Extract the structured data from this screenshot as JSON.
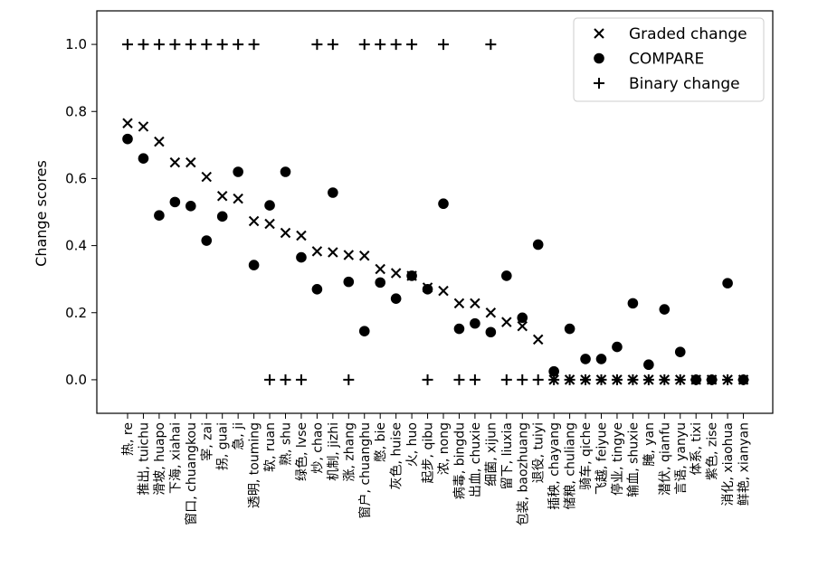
{
  "chart_data": {
    "type": "scatter",
    "ylabel": "Change scores",
    "xlabel": "",
    "ylim": [
      -0.1,
      1.1
    ],
    "yticks": [
      0.0,
      0.2,
      0.4,
      0.6,
      0.8,
      1.0
    ],
    "ytick_labels": [
      "0.0",
      "0.2",
      "0.4",
      "0.6",
      "0.8",
      "1.0"
    ],
    "grid": false,
    "legend_position": "top-right",
    "categories": [
      "热, re",
      "推出, tuichu",
      "滑坡, huapo",
      "下海, xiahai",
      "窗口, chuangkou",
      "宰, zai",
      "拐, guai",
      "急, ji",
      "透明, touming",
      "软, ruan",
      "熟, shu",
      "绿色, lvse",
      "炒, chao",
      "机制, jizhi",
      "涨, zhang",
      "窗户, chuanghu",
      "憋, bie",
      "灰色, huise",
      "火, huo",
      "起步, qibu",
      "浓, nong",
      "病毒, bingdu",
      "出血, chuxie",
      "细菌, xijun",
      "留下, liuxia",
      "包装, baozhuang",
      "退役, tuiyi",
      "插秧, chayang",
      "储粮, chuliang",
      "骑车, qiche",
      "飞越, feiyue",
      "停业, tingye",
      "输血, shuxie",
      "腌, yan",
      "潜伏, qianfu",
      "言语, yanyu",
      "体系, tixi",
      "紫色, zise",
      "消化, xiaohua",
      "鲜艳, xianyan"
    ],
    "series": [
      {
        "name": "Graded change",
        "marker": "x",
        "values": [
          0.765,
          0.755,
          0.71,
          0.648,
          0.648,
          0.605,
          0.548,
          0.54,
          0.473,
          0.465,
          0.438,
          0.43,
          0.383,
          0.38,
          0.372,
          0.37,
          0.33,
          0.318,
          0.31,
          0.275,
          0.265,
          0.228,
          0.228,
          0.2,
          0.172,
          0.16,
          0.12,
          0.0,
          0.0,
          0.0,
          0.0,
          0.0,
          0.0,
          0.0,
          0.0,
          0.0,
          0.0,
          0.0,
          0.0,
          0.0
        ]
      },
      {
        "name": "COMPARE",
        "marker": "o",
        "values": [
          0.718,
          0.66,
          0.49,
          0.53,
          0.518,
          0.415,
          0.487,
          0.62,
          0.342,
          0.52,
          0.62,
          0.365,
          0.27,
          0.558,
          0.292,
          0.145,
          0.29,
          0.242,
          0.31,
          0.27,
          0.525,
          0.152,
          0.168,
          0.142,
          0.31,
          0.185,
          0.403,
          0.025,
          0.152,
          0.062,
          0.062,
          0.098,
          0.228,
          0.045,
          0.21,
          0.083,
          0.0,
          0.0,
          0.288,
          0.0
        ]
      },
      {
        "name": "Binary change",
        "marker": "+",
        "values": [
          1,
          1,
          1,
          1,
          1,
          1,
          1,
          1,
          1,
          0,
          0,
          0,
          1,
          1,
          0,
          1,
          1,
          1,
          1,
          0,
          1,
          0,
          0,
          1,
          0,
          0,
          0,
          0,
          0,
          0,
          0,
          0,
          0,
          0,
          0,
          0,
          0,
          0,
          0,
          0
        ]
      }
    ]
  }
}
